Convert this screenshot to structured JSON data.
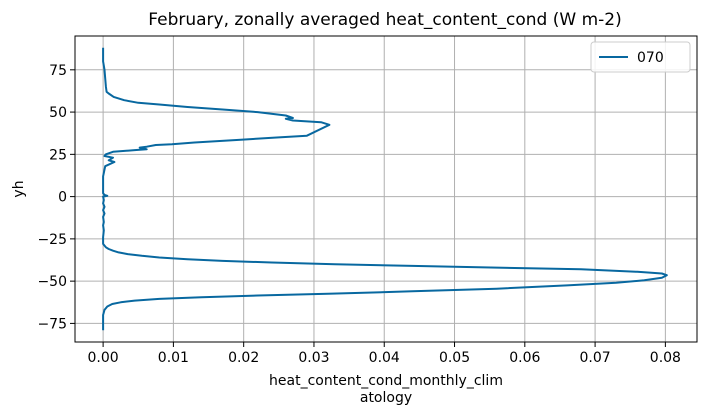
{
  "chart_data": {
    "type": "line",
    "title": "February, zonally averaged heat_content_cond (W m-2)",
    "xlabel_lines": [
      "heat_content_cond_monthly_clim",
      "atology"
    ],
    "ylabel": "yh",
    "xlim": [
      -0.004,
      0.0845
    ],
    "ylim": [
      -86,
      95
    ],
    "xticks": [
      0.0,
      0.01,
      0.02,
      0.03,
      0.04,
      0.05,
      0.06,
      0.07,
      0.08
    ],
    "xtick_labels": [
      "0.00",
      "0.01",
      "0.02",
      "0.03",
      "0.04",
      "0.05",
      "0.06",
      "0.07",
      "0.08"
    ],
    "yticks": [
      -75,
      -50,
      -25,
      0,
      25,
      50,
      75
    ],
    "ytick_labels": [
      "−75",
      "−50",
      "−25",
      "0",
      "25",
      "50",
      "75"
    ],
    "grid": true,
    "legend_position": "top-right",
    "series": [
      {
        "name": "070",
        "color": "#0868a0",
        "x": [
          0.0,
          0.0,
          0.0,
          0.0002,
          0.0006,
          0.0013,
          0.0025,
          0.0045,
          0.008,
          0.014,
          0.022,
          0.032,
          0.044,
          0.056,
          0.066,
          0.073,
          0.077,
          0.0795,
          0.0802,
          0.0795,
          0.076,
          0.068,
          0.056,
          0.044,
          0.033,
          0.024,
          0.017,
          0.012,
          0.008,
          0.0055,
          0.0035,
          0.0022,
          0.0014,
          0.0008,
          0.0004,
          0.0002,
          0.0,
          0.0,
          0.0,
          0.0001,
          0.0,
          0.0001,
          0.0,
          0.0002,
          0.0,
          0.0002,
          0.0,
          0.0001,
          0.0,
          0.0006,
          0.0002,
          0.0,
          0.0,
          0.0,
          0.0003,
          0.0016,
          0.0008,
          0.0014,
          0.0002,
          0.0004,
          0.0014,
          0.0045,
          0.0062,
          0.0052,
          0.0062,
          0.0075,
          0.0098,
          0.013,
          0.019,
          0.025,
          0.029,
          0.0322,
          0.031,
          0.027,
          0.026,
          0.027,
          0.026,
          0.022,
          0.017,
          0.012,
          0.008,
          0.005,
          0.003,
          0.0015,
          0.0008,
          0.0005,
          0.0004,
          0.0003,
          0.0002,
          0.0,
          0.0
        ],
        "y": [
          -79,
          -75,
          -70,
          -67,
          -65,
          -63.5,
          -62.5,
          -61.5,
          -60.5,
          -59.5,
          -58.5,
          -57.5,
          -56,
          -54.5,
          -52.5,
          -51,
          -49.5,
          -48,
          -46.5,
          -45.5,
          -44.5,
          -43,
          -42,
          -41,
          -40,
          -39,
          -38,
          -37,
          -36,
          -35,
          -34,
          -33,
          -32,
          -31,
          -30,
          -29,
          -28,
          -25,
          -24,
          -20,
          -17,
          -15,
          -12,
          -10,
          -8,
          -6,
          -4,
          -2,
          0,
          0.5,
          1,
          2,
          6,
          12,
          18,
          20.5,
          21.5,
          23,
          24,
          25,
          26.5,
          27.5,
          28,
          29,
          29.5,
          30.5,
          31,
          32,
          33.5,
          35,
          36,
          42.5,
          44,
          45,
          46,
          46.5,
          48,
          50,
          51.5,
          53,
          54.5,
          55.5,
          57,
          59,
          61,
          62,
          65,
          70,
          75,
          80,
          88
        ]
      }
    ]
  }
}
